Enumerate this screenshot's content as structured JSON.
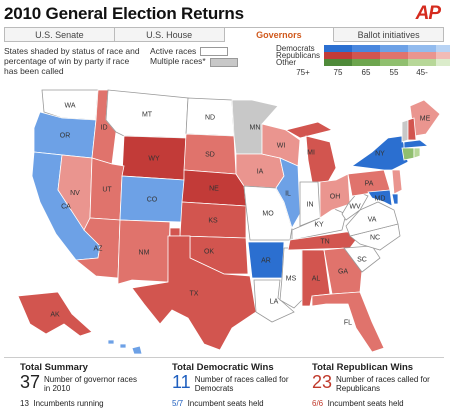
{
  "header": {
    "title": "2010 General Election Returns",
    "logo": "AP"
  },
  "tabs": [
    {
      "label": "U.S. Senate"
    },
    {
      "label": "U.S. House"
    },
    {
      "label": "Governors"
    },
    {
      "label": "Ballot initiatives"
    }
  ],
  "legend": {
    "description": "States shaded by status of race and percentage of win by party if race has been called",
    "active_races": "Active races",
    "multiple_races": "Multiple races*",
    "parties": [
      "Democrats",
      "Republicans",
      "Other"
    ],
    "ticks": [
      "75+",
      "75",
      "65",
      "55",
      "45-"
    ]
  },
  "colors": {
    "dem": [
      "#2b6fd0",
      "#4a87de",
      "#6da1e6",
      "#92bbee",
      "#b8d3f4"
    ],
    "rep": [
      "#c23b38",
      "#d2554f",
      "#e0736c",
      "#ea958f",
      "#f2bbb6"
    ],
    "other": [
      "#4f8a3a",
      "#6da54e",
      "#90bf6f",
      "#b7d798",
      "#dbeccb"
    ]
  },
  "states": [
    "WA",
    "OR",
    "CA",
    "NV",
    "ID",
    "MT",
    "WY",
    "UT",
    "AZ",
    "CO",
    "NM",
    "ND",
    "SD",
    "NE",
    "KS",
    "OK",
    "TX",
    "MN",
    "IA",
    "MO",
    "AR",
    "LA",
    "WI",
    "IL",
    "MS",
    "MI",
    "IN",
    "KY",
    "TN",
    "AL",
    "OH",
    "GA",
    "FL",
    "SC",
    "NC",
    "VA",
    "WV",
    "PA",
    "NY",
    "ME",
    "VT",
    "NH",
    "MA",
    "CT",
    "RI",
    "NJ",
    "DE",
    "MD",
    "AK",
    "HI"
  ],
  "summary": [
    {
      "title": "Total Summary",
      "value": "37",
      "desc": "Number of governor races in 2010",
      "foot_num": "13",
      "foot_text": "Incumbents running",
      "color": "#222"
    },
    {
      "title": "Total Democratic Wins",
      "value": "11",
      "desc": "Number of races called for Democrats",
      "foot_num": "5/7",
      "foot_text": "Incumbent seats held",
      "color": "#1f5fbf"
    },
    {
      "title": "Total Republican Wins",
      "value": "23",
      "desc": "Number of races called for Republicans",
      "foot_num": "6/6",
      "foot_text": "Incumbent seats held",
      "color": "#c0392b"
    }
  ]
}
